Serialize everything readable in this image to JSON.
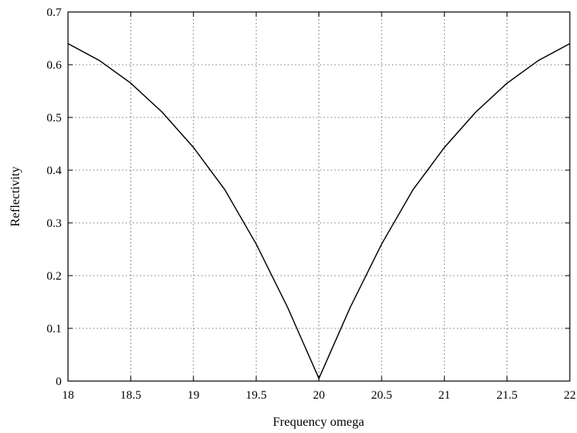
{
  "chart_data": {
    "type": "line",
    "title": "",
    "xlabel": "Frequency omega",
    "ylabel": "Reflectivity",
    "xlim": [
      18,
      22
    ],
    "ylim": [
      0,
      0.7
    ],
    "grid": true,
    "xticks": [
      "18",
      "18.5",
      "19",
      "19.5",
      "20",
      "20.5",
      "21",
      "21.5",
      "22"
    ],
    "yticks": [
      "0",
      "0.1",
      "0.2",
      "0.3",
      "0.4",
      "0.5",
      "0.6",
      "0.7"
    ],
    "series": [
      {
        "x": [
          18.0,
          18.25,
          18.5,
          18.75,
          19.0,
          19.25,
          19.5,
          19.75,
          20.0,
          20.25,
          20.5,
          20.75,
          21.0,
          21.25,
          21.5,
          21.75,
          22.0
        ],
        "y": [
          0.64,
          0.608,
          0.565,
          0.51,
          0.443,
          0.363,
          0.26,
          0.14,
          0.005,
          0.14,
          0.26,
          0.363,
          0.443,
          0.51,
          0.565,
          0.608,
          0.64
        ]
      }
    ]
  }
}
